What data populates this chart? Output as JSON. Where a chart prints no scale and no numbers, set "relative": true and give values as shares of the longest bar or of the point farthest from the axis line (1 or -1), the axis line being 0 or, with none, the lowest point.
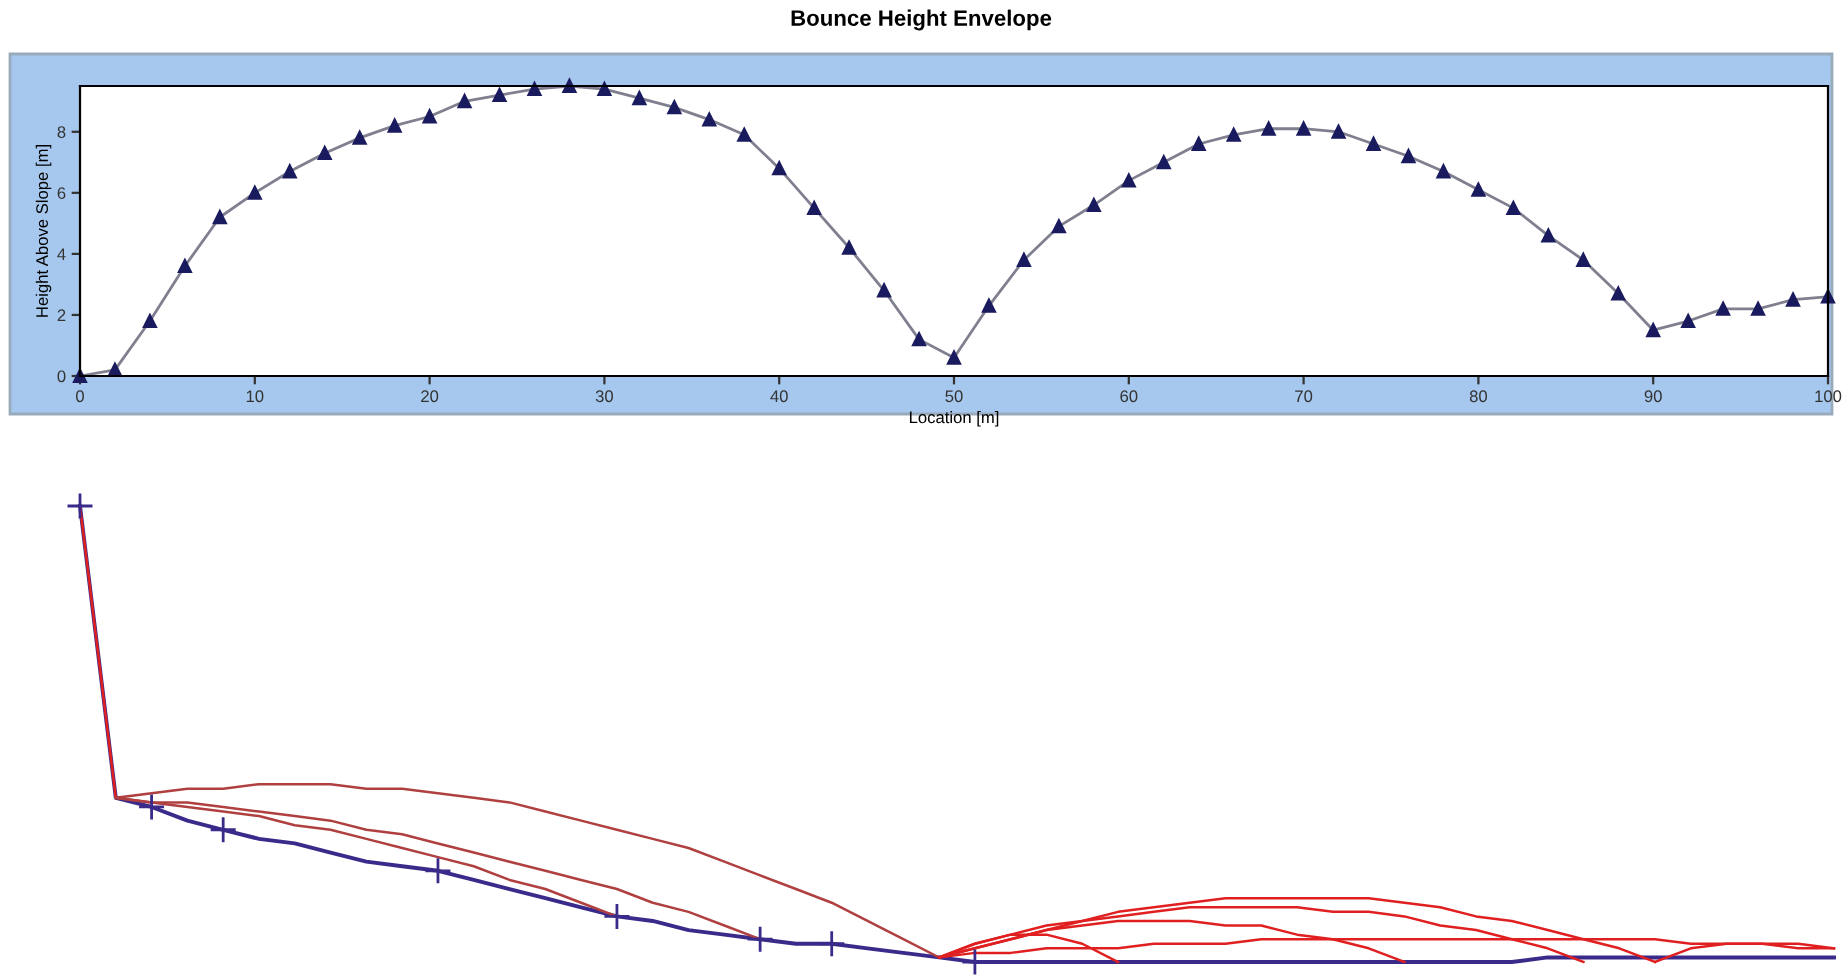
{
  "chart_data": [
    {
      "type": "line",
      "title": "Bounce Height Envelope",
      "xlabel": "Location [m]",
      "ylabel": "Height Above Slope [m]",
      "x": [
        0,
        2,
        4,
        6,
        8,
        10,
        12,
        14,
        16,
        18,
        20,
        22,
        24,
        26,
        28,
        30,
        32,
        34,
        36,
        38,
        40,
        42,
        44,
        46,
        48,
        50,
        52,
        54,
        56,
        58,
        60,
        62,
        64,
        66,
        68,
        70,
        72,
        74,
        76,
        78,
        80,
        82,
        84,
        86,
        88,
        90,
        92,
        94,
        96,
        98,
        100
      ],
      "series": [
        {
          "color": "#7f7f8f",
          "values": [
            0,
            0.2,
            1.8,
            3.6,
            5.2,
            6.0,
            6.7,
            7.3,
            7.8,
            8.2,
            8.5,
            9.0,
            9.2,
            9.4,
            9.5,
            9.4,
            9.1,
            8.8,
            8.4,
            7.9,
            6.8,
            5.5,
            4.2,
            2.8,
            1.2,
            0.6,
            2.3,
            3.8,
            4.9,
            5.6,
            6.4,
            7.0,
            7.6,
            7.9,
            8.1,
            8.1,
            8.0,
            7.6,
            7.2,
            6.7,
            6.1,
            5.5,
            4.6,
            3.8,
            2.7,
            1.5,
            1.8,
            2.2,
            2.2,
            2.5,
            2.6
          ]
        }
      ],
      "marker": "triangle",
      "xlim": [
        0,
        100
      ],
      "ylim": [
        0,
        9.5
      ],
      "xticks": [
        0,
        10,
        20,
        30,
        40,
        50,
        60,
        70,
        80,
        90,
        100
      ],
      "yticks": [
        0,
        2,
        4,
        6,
        8
      ],
      "grid": false,
      "legend": false
    },
    {
      "type": "line",
      "relative": true,
      "categories": [
        null,
        null,
        null,
        null,
        null,
        null,
        null,
        null,
        null,
        null,
        null,
        null,
        null,
        null,
        null,
        null,
        null,
        null,
        null,
        null,
        null,
        null,
        null,
        null,
        null,
        null,
        null,
        null,
        null,
        null,
        null,
        null,
        null,
        null,
        null,
        null,
        null,
        null,
        null,
        null,
        null,
        null,
        null,
        null,
        null,
        null,
        null,
        null,
        null,
        null
      ],
      "series": [
        {
          "color": "#3a2a8a",
          "values": [
            1,
            0.36,
            0.34,
            0.31,
            0.29,
            0.27,
            0.26,
            0.24,
            0.22,
            0.21,
            0.2,
            0.18,
            0.16,
            0.14,
            0.12,
            0.1,
            0.09,
            0.07,
            0.06,
            0.05,
            0.04,
            0.04,
            0.03,
            0.02,
            0.01,
            0,
            0,
            0,
            0,
            0,
            0,
            0,
            0,
            0,
            0,
            0,
            0,
            0,
            0,
            0,
            0,
            0.01,
            0.01,
            0.01,
            0.01,
            0.01,
            0.01,
            0.01,
            0.01,
            0.01
          ]
        },
        {
          "color": "#e02020",
          "values": [
            1,
            0.36,
            null,
            null,
            null,
            null,
            null,
            null,
            null,
            null,
            null,
            null,
            null,
            null,
            null,
            null,
            null,
            null,
            null,
            null,
            null,
            null,
            null,
            null,
            null,
            null,
            null,
            null,
            null,
            null,
            null,
            null,
            null,
            null,
            null,
            null,
            null,
            null,
            null,
            null,
            null,
            null,
            null,
            null,
            null,
            null,
            null,
            null,
            null,
            null
          ]
        },
        {
          "color": "#b04040",
          "values": [
            null,
            0.36,
            0.37,
            0.38,
            0.38,
            0.39,
            0.39,
            0.39,
            0.38,
            0.38,
            0.37,
            0.36,
            0.35,
            0.33,
            0.31,
            0.29,
            0.27,
            0.25,
            0.22,
            0.19,
            0.16,
            0.13,
            0.09,
            0.05,
            0.01,
            null,
            null,
            null,
            null,
            null,
            null,
            null,
            null,
            null,
            null,
            null,
            null,
            null,
            null,
            null,
            null,
            null,
            null,
            null,
            null,
            null,
            null,
            null,
            null,
            null
          ]
        },
        {
          "color": "#b04040",
          "values": [
            null,
            0.36,
            0.35,
            0.35,
            0.34,
            0.33,
            0.32,
            0.31,
            0.29,
            0.28,
            0.26,
            0.24,
            0.22,
            0.2,
            0.18,
            0.16,
            0.13,
            0.11,
            0.08,
            0.05,
            null,
            null,
            null,
            null,
            null,
            null,
            null,
            null,
            null,
            null,
            null,
            null,
            null,
            null,
            null,
            null,
            null,
            null,
            null,
            null,
            null,
            null,
            null,
            null,
            null,
            null,
            null,
            null,
            null,
            null
          ]
        },
        {
          "color": "#b04040",
          "values": [
            null,
            0.36,
            0.35,
            0.34,
            0.33,
            0.32,
            0.3,
            0.29,
            0.27,
            0.25,
            0.23,
            0.21,
            0.18,
            0.16,
            0.13,
            0.1,
            null,
            null,
            null,
            null,
            null,
            null,
            null,
            null,
            null,
            null,
            null,
            null,
            null,
            null,
            null,
            null,
            null,
            null,
            null,
            null,
            null,
            null,
            null,
            null,
            null,
            null,
            null,
            null,
            null,
            null,
            null,
            null,
            null,
            null
          ]
        },
        {
          "color": "#e02020",
          "values": [
            null,
            null,
            null,
            null,
            null,
            null,
            null,
            null,
            null,
            null,
            null,
            null,
            null,
            null,
            null,
            null,
            null,
            null,
            null,
            null,
            null,
            null,
            null,
            null,
            0.01,
            0.04,
            0.06,
            0.08,
            0.09,
            0.11,
            0.12,
            0.13,
            0.14,
            0.14,
            0.14,
            0.14,
            0.14,
            0.13,
            0.12,
            0.1,
            0.09,
            0.07,
            0.05,
            0.03,
            0,
            null,
            null,
            null,
            null,
            null
          ]
        },
        {
          "color": "#e02020",
          "values": [
            null,
            null,
            null,
            null,
            null,
            null,
            null,
            null,
            null,
            null,
            null,
            null,
            null,
            null,
            null,
            null,
            null,
            null,
            null,
            null,
            null,
            null,
            null,
            null,
            0.01,
            0.04,
            0.06,
            0.06,
            0.04,
            0,
            null,
            null,
            null,
            null,
            null,
            null,
            null,
            null,
            null,
            null,
            null,
            null,
            null,
            null,
            null,
            null,
            null,
            null,
            null,
            null
          ]
        },
        {
          "color": "#e02020",
          "values": [
            null,
            null,
            null,
            null,
            null,
            null,
            null,
            null,
            null,
            null,
            null,
            null,
            null,
            null,
            null,
            null,
            null,
            null,
            null,
            null,
            null,
            null,
            null,
            null,
            0.01,
            0.03,
            0.05,
            0.07,
            0.08,
            0.09,
            0.09,
            0.09,
            0.08,
            0.08,
            0.06,
            0.05,
            0.03,
            0,
            null,
            null,
            null,
            null,
            null,
            null,
            null,
            null,
            null,
            null,
            null,
            null
          ]
        },
        {
          "color": "#e02020",
          "values": [
            null,
            null,
            null,
            null,
            null,
            null,
            null,
            null,
            null,
            null,
            null,
            null,
            null,
            null,
            null,
            null,
            null,
            null,
            null,
            null,
            null,
            null,
            null,
            null,
            0.01,
            0.03,
            0.05,
            0.07,
            0.09,
            0.1,
            0.11,
            0.12,
            0.12,
            0.12,
            0.12,
            0.11,
            0.11,
            0.1,
            0.08,
            0.07,
            0.05,
            0.03,
            0,
            null,
            null,
            null,
            null,
            null,
            null,
            null
          ]
        },
        {
          "color": "#e02020",
          "values": [
            null,
            null,
            null,
            null,
            null,
            null,
            null,
            null,
            null,
            null,
            null,
            null,
            null,
            null,
            null,
            null,
            null,
            null,
            null,
            null,
            null,
            null,
            null,
            null,
            0.01,
            0.02,
            0.02,
            0.03,
            0.03,
            0.03,
            0.04,
            0.04,
            0.04,
            0.05,
            0.05,
            0.05,
            0.05,
            0.05,
            0.05,
            0.05,
            0.05,
            0.05,
            0.05,
            0.05,
            0.05,
            0.04,
            0.04,
            0.04,
            0.03,
            0.03
          ]
        },
        {
          "color": "#e02020",
          "values": [
            null,
            null,
            null,
            null,
            null,
            null,
            null,
            null,
            null,
            null,
            null,
            null,
            null,
            null,
            null,
            null,
            null,
            null,
            null,
            null,
            null,
            null,
            null,
            null,
            null,
            null,
            null,
            null,
            null,
            null,
            null,
            null,
            null,
            null,
            null,
            null,
            null,
            null,
            null,
            null,
            null,
            null,
            null,
            null,
            0,
            0.03,
            0.04,
            0.04,
            0.04,
            0.03
          ]
        }
      ]
    }
  ]
}
